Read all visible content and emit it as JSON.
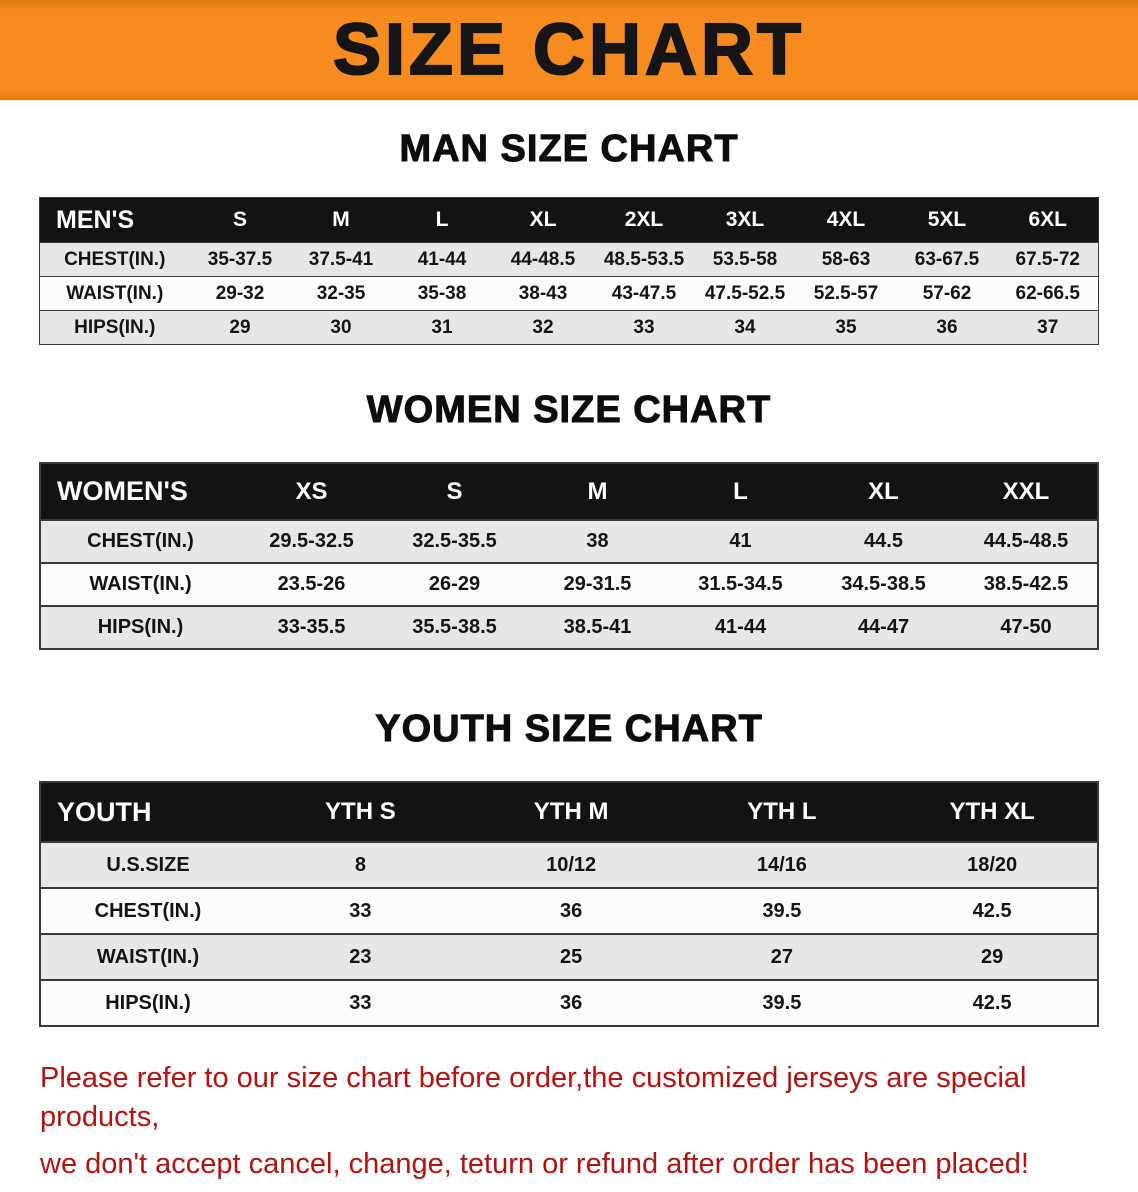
{
  "banner": {
    "title": "SIZE CHART",
    "bg_color": "#f68b1f",
    "text_color": "#151515"
  },
  "chart_data": [
    {
      "type": "table",
      "title": "MAN SIZE CHART",
      "header": [
        "MEN'S",
        "S",
        "M",
        "L",
        "XL",
        "2XL",
        "3XL",
        "4XL",
        "5XL",
        "6XL"
      ],
      "rows": [
        [
          "CHEST(IN.)",
          "35-37.5",
          "37.5-41",
          "41-44",
          "44-48.5",
          "48.5-53.5",
          "53.5-58",
          "58-63",
          "63-67.5",
          "67.5-72"
        ],
        [
          "WAIST(IN.)",
          "29-32",
          "32-35",
          "35-38",
          "38-43",
          "43-47.5",
          "47.5-52.5",
          "52.5-57",
          "57-62",
          "62-66.5"
        ],
        [
          "HIPS(IN.)",
          "29",
          "30",
          "31",
          "32",
          "33",
          "34",
          "35",
          "36",
          "37"
        ]
      ]
    },
    {
      "type": "table",
      "title": "WOMEN SIZE CHART",
      "header": [
        "WOMEN'S",
        "XS",
        "S",
        "M",
        "L",
        "XL",
        "XXL"
      ],
      "rows": [
        [
          "CHEST(IN.)",
          "29.5-32.5",
          "32.5-35.5",
          "38",
          "41",
          "44.5",
          "44.5-48.5"
        ],
        [
          "WAIST(IN.)",
          "23.5-26",
          "26-29",
          "29-31.5",
          "31.5-34.5",
          "34.5-38.5",
          "38.5-42.5"
        ],
        [
          "HIPS(IN.)",
          "33-35.5",
          "35.5-38.5",
          "38.5-41",
          "41-44",
          "44-47",
          "47-50"
        ]
      ]
    },
    {
      "type": "table",
      "title": "YOUTH SIZE CHART",
      "header": [
        "YOUTH",
        "YTH S",
        "YTH M",
        "YTH L",
        "YTH XL"
      ],
      "rows": [
        [
          "U.S.SIZE",
          "8",
          "10/12",
          "14/16",
          "18/20"
        ],
        [
          "CHEST(IN.)",
          "33",
          "36",
          "39.5",
          "42.5"
        ],
        [
          "WAIST(IN.)",
          "23",
          "25",
          "27",
          "29"
        ],
        [
          "HIPS(IN.)",
          "33",
          "36",
          "39.5",
          "42.5"
        ]
      ]
    }
  ],
  "footer": {
    "line1": "Please refer to our size chart before order,the customized jerseys are special products,",
    "line2": "we don't accept cancel, change, teturn or refund after order has been placed!",
    "color": "#b11212"
  }
}
